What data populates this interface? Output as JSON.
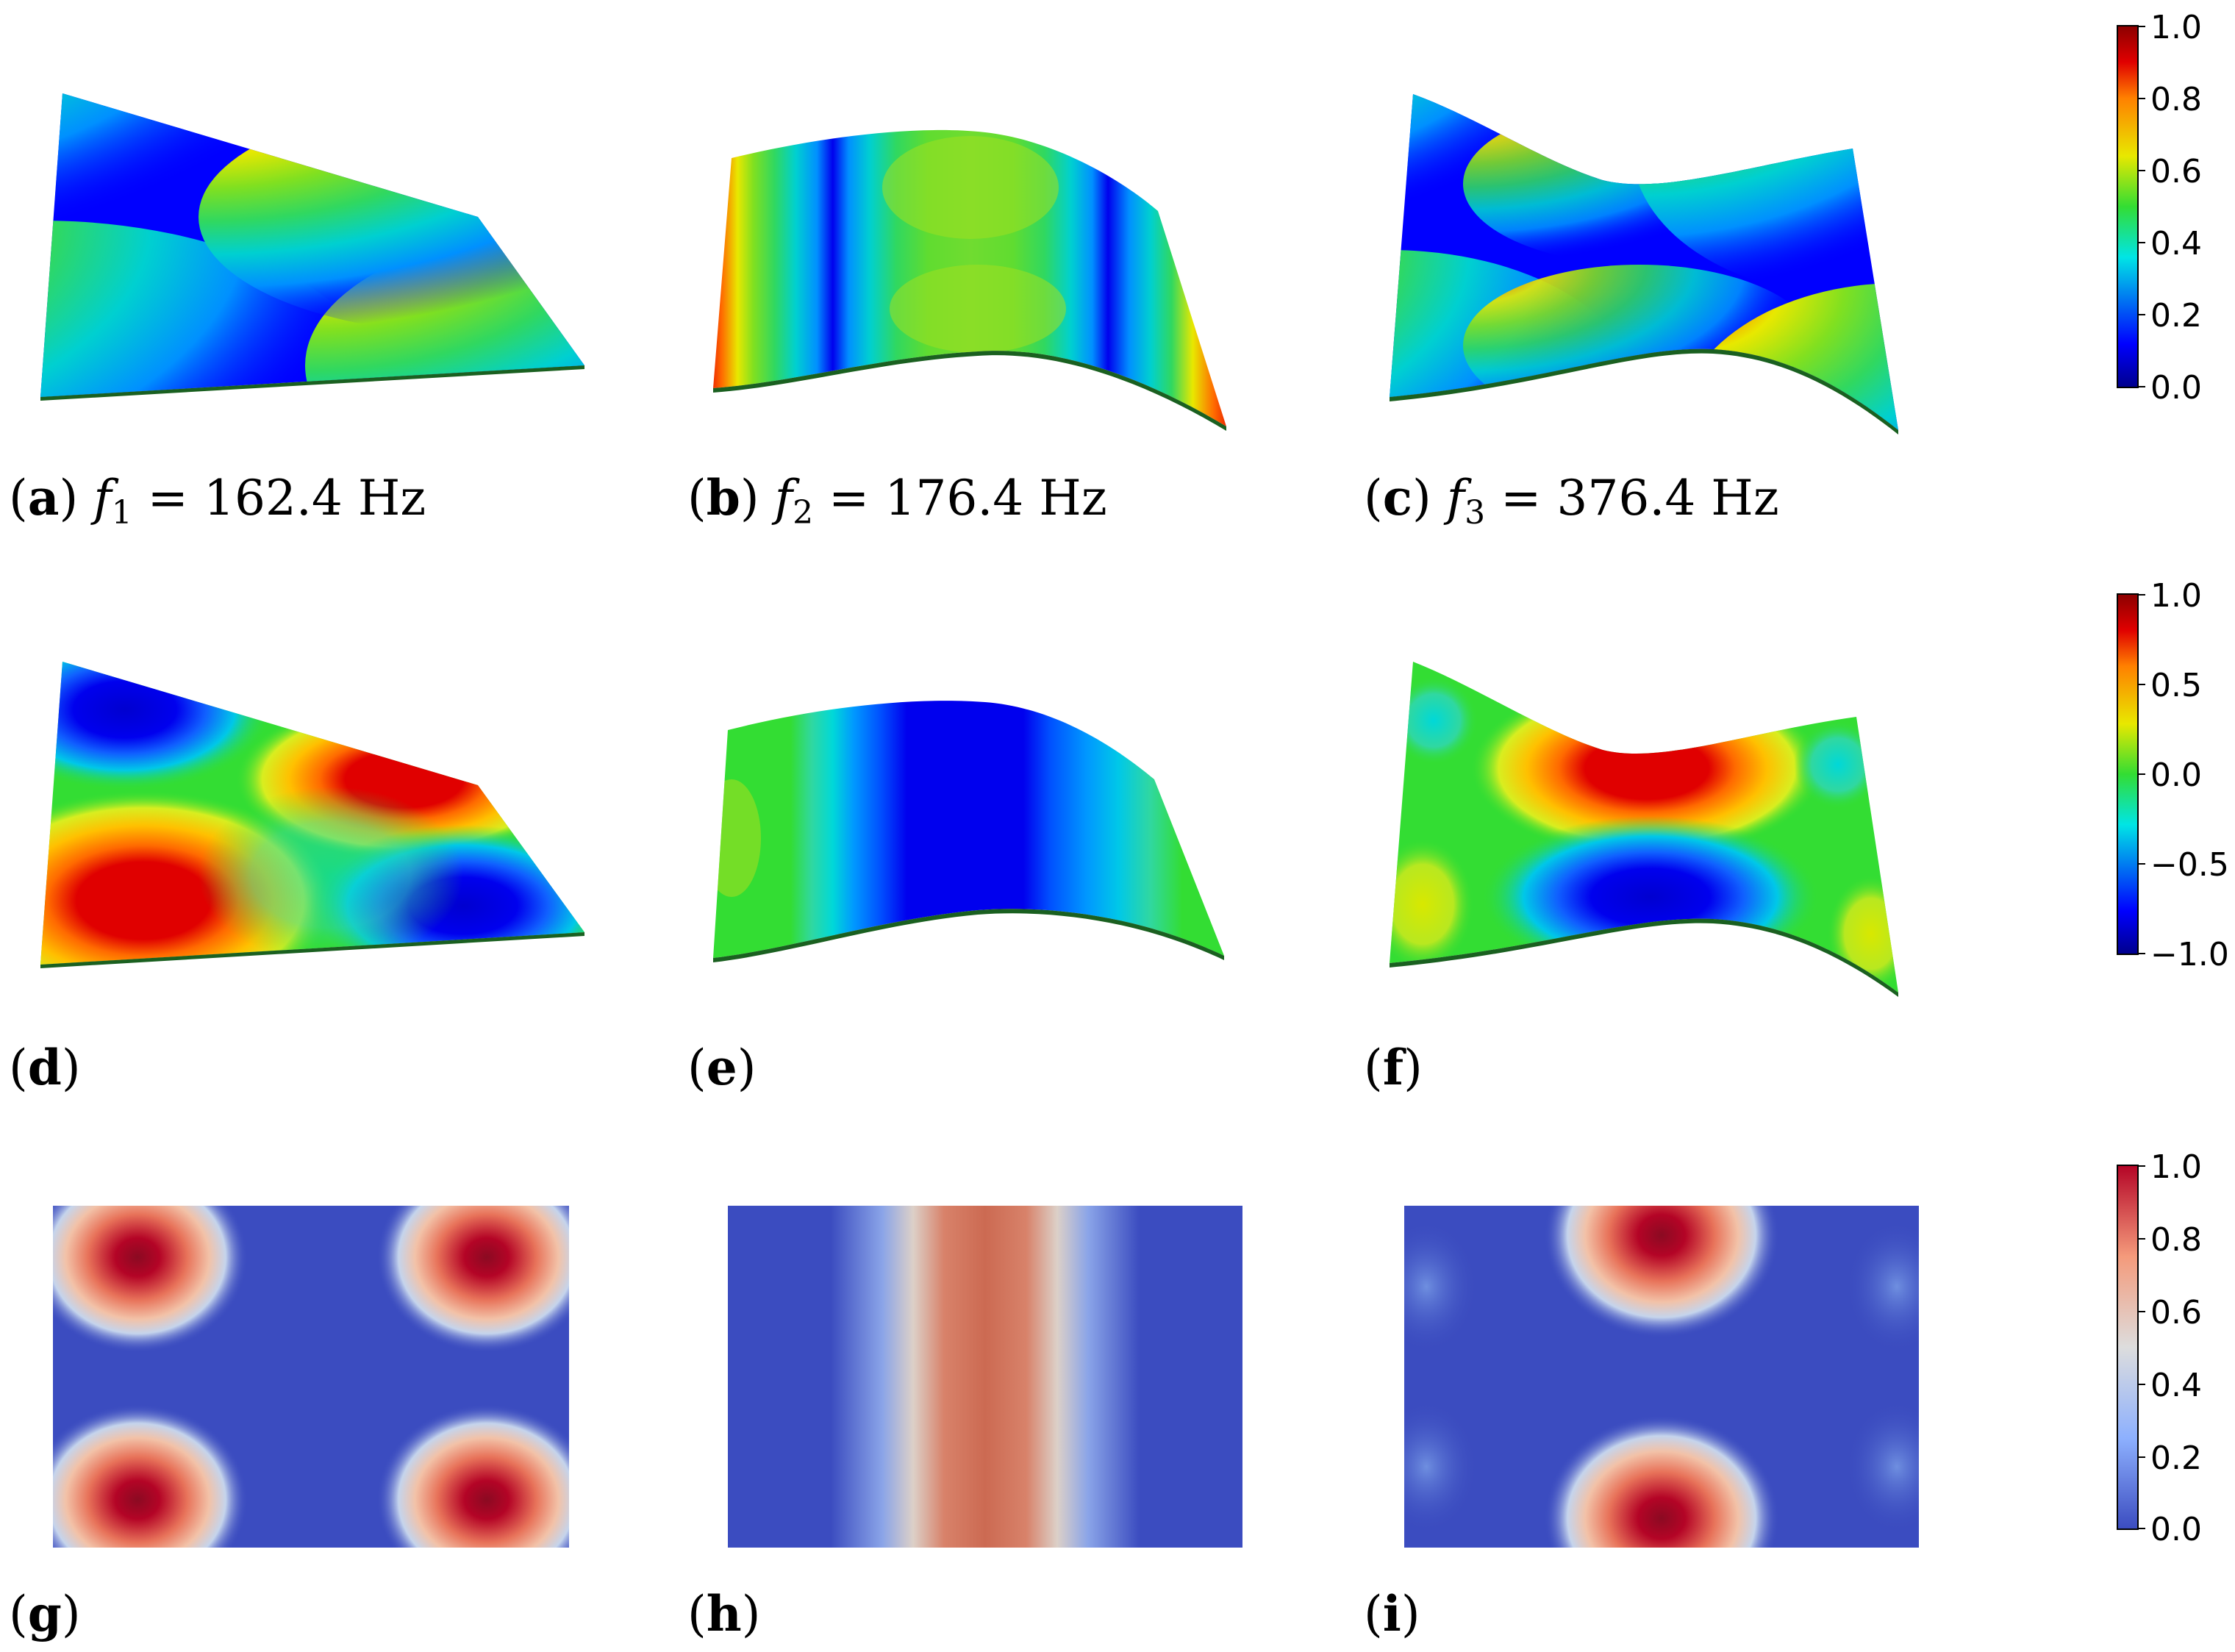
{
  "panels": [
    {
      "id": "a",
      "letter": "a",
      "symbol": "f",
      "sub": "1",
      "equals": " = ",
      "value_text": "162.4 Hz",
      "row": 0,
      "col": 0
    },
    {
      "id": "b",
      "letter": "b",
      "symbol": "f",
      "sub": "2",
      "equals": " = ",
      "value_text": "176.4 Hz",
      "row": 0,
      "col": 1
    },
    {
      "id": "c",
      "letter": "c",
      "symbol": "f",
      "sub": "3",
      "equals": " = ",
      "value_text": "376.4 Hz",
      "row": 0,
      "col": 2
    },
    {
      "id": "d",
      "letter": "d",
      "row": 1,
      "col": 0
    },
    {
      "id": "e",
      "letter": "e",
      "row": 1,
      "col": 1
    },
    {
      "id": "f",
      "letter": "f",
      "row": 1,
      "col": 2
    },
    {
      "id": "g",
      "letter": "g",
      "row": 2,
      "col": 0
    },
    {
      "id": "h",
      "letter": "h",
      "row": 2,
      "col": 1
    },
    {
      "id": "i",
      "letter": "i",
      "row": 2,
      "col": 2
    }
  ],
  "colorbars": [
    {
      "row": 0,
      "colormap": "jet",
      "ticks": [
        "1.0",
        "0.8",
        "0.6",
        "0.4",
        "0.2",
        "0.0"
      ]
    },
    {
      "row": 1,
      "colormap": "jet",
      "ticks": [
        "1.0",
        "0.5",
        "0.0",
        "−0.5",
        "−1.0"
      ]
    },
    {
      "row": 2,
      "colormap": "coolwarm",
      "ticks": [
        "1.0",
        "0.8",
        "0.6",
        "0.4",
        "0.2",
        "0.0"
      ]
    }
  ],
  "colors": {
    "jet_dark_blue": "#00008b",
    "jet_blue": "#0000ff",
    "jet_cyan": "#00e5e5",
    "jet_green": "#33dd33",
    "jet_yellow": "#e8e800",
    "jet_orange": "#ff8000",
    "jet_red": "#e00000",
    "jet_dark_red": "#8b0000",
    "cw_blue": "#3b4cc0",
    "cw_light_blue": "#8db0fe",
    "cw_grey": "#dddddd",
    "cw_salmon": "#f49a7b",
    "cw_red": "#b40426"
  }
}
